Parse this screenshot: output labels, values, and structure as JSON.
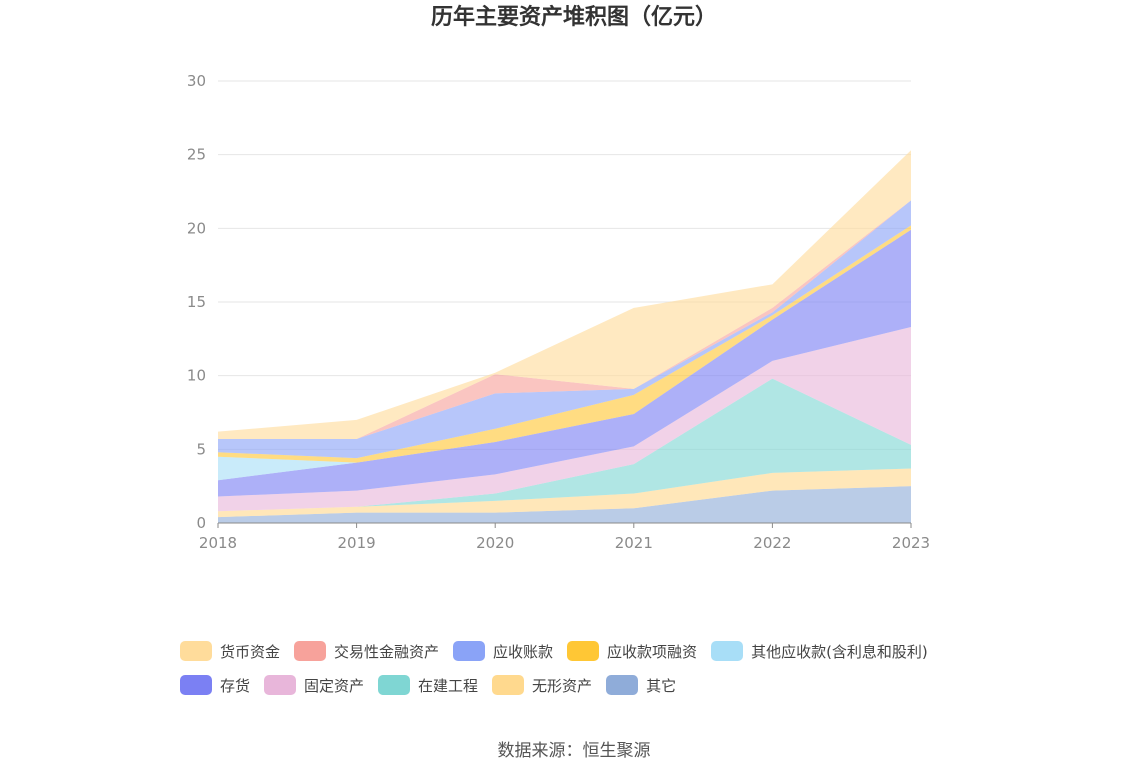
{
  "title": "历年主要资产堆积图（亿元）",
  "source": "数据来源：恒生聚源",
  "chart_data": {
    "type": "area",
    "stacked": true,
    "x": [
      "2018",
      "2019",
      "2020",
      "2021",
      "2022",
      "2023"
    ],
    "ylim": [
      0,
      30
    ],
    "yticks": [
      0,
      5,
      10,
      15,
      20,
      25,
      30
    ],
    "grid": true,
    "legend_position": "bottom",
    "series": [
      {
        "name": "其它",
        "color": "#8facd9",
        "values": [
          0.4,
          0.7,
          0.7,
          1.0,
          2.2,
          2.5
        ]
      },
      {
        "name": "无形资产",
        "color": "#ffd98e",
        "values": [
          0.4,
          0.4,
          0.8,
          1.0,
          1.2,
          1.2
        ]
      },
      {
        "name": "在建工程",
        "color": "#7fd6d3",
        "values": [
          0.0,
          0.0,
          0.5,
          2.0,
          6.4,
          1.6
        ]
      },
      {
        "name": "固定资产",
        "color": "#e8b6da",
        "values": [
          1.0,
          1.1,
          1.3,
          1.2,
          1.2,
          8.0
        ]
      },
      {
        "name": "存货",
        "color": "#7b80f3",
        "values": [
          1.1,
          1.9,
          2.2,
          2.2,
          2.8,
          6.6
        ]
      },
      {
        "name": "其他应收款(含利息和股利)",
        "color": "#a8def7",
        "values": [
          1.6,
          0.0,
          0.0,
          0.0,
          0.0,
          0.0
        ]
      },
      {
        "name": "应收款项融资",
        "color": "#ffc735",
        "values": [
          0.3,
          0.3,
          0.9,
          1.3,
          0.3,
          0.3
        ]
      },
      {
        "name": "应收账款",
        "color": "#8aa3f7",
        "values": [
          0.9,
          1.3,
          2.4,
          0.4,
          0.2,
          1.7
        ]
      },
      {
        "name": "交易性金融资产",
        "color": "#f7a29b",
        "values": [
          0.0,
          0.0,
          1.3,
          0.0,
          0.3,
          0.0
        ]
      },
      {
        "name": "货币资金",
        "color": "#ffdc9b",
        "values": [
          0.5,
          1.3,
          0.1,
          5.5,
          1.6,
          3.4
        ]
      }
    ]
  },
  "legend": {
    "rows": [
      [
        {
          "name": "货币资金",
          "color": "#ffdc9b"
        },
        {
          "name": "交易性金融资产",
          "color": "#f7a29b"
        },
        {
          "name": "应收账款",
          "color": "#8aa3f7"
        },
        {
          "name": "应收款项融资",
          "color": "#ffc735"
        },
        {
          "name": "其他应收款(含利息和股利)",
          "color": "#a8def7"
        }
      ],
      [
        {
          "name": "存货",
          "color": "#7b80f3"
        },
        {
          "name": "固定资产",
          "color": "#e8b6da"
        },
        {
          "name": "在建工程",
          "color": "#7fd6d3"
        },
        {
          "name": "无形资产",
          "color": "#ffd98e"
        },
        {
          "name": "其它",
          "color": "#8facd9"
        }
      ]
    ]
  }
}
